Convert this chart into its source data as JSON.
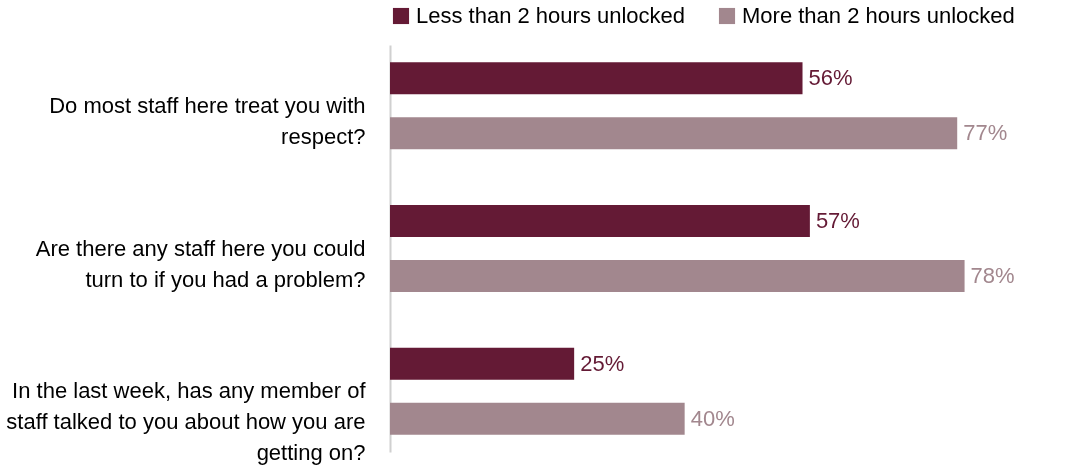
{
  "chart_data": {
    "type": "bar",
    "orientation": "horizontal",
    "legend": "top",
    "grid": false,
    "categories": [
      "Do most staff here treat you with respect?",
      "Are there any staff here you could turn to if you had a problem?",
      "In the last week, has any member of staff talked to you about how you are getting on?"
    ],
    "series": [
      {
        "name": "Less than 2 hours unlocked",
        "color": "#641a35",
        "values": [
          56,
          57,
          25
        ],
        "value_labels": [
          "56%",
          "57%",
          "25%"
        ]
      },
      {
        "name": "More than 2 hours unlocked",
        "color": "#a2878e",
        "values": [
          77,
          78,
          40
        ],
        "value_labels": [
          "77%",
          "78%",
          "40%"
        ]
      }
    ]
  }
}
